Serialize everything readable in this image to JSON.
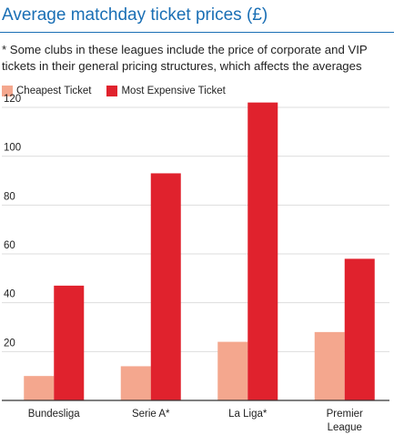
{
  "title": "Average matchday ticket prices (£)",
  "subtitle": "* Some clubs in these leagues include the price of corporate and VIP tickets in their general pricing structures, which affects the averages",
  "colors": {
    "cheapest": "#f4a78e",
    "most_expensive": "#e0222d",
    "title": "#1a6fb5",
    "grid": "#dddddd"
  },
  "chart_data": {
    "type": "bar",
    "categories": [
      "Bundesliga",
      "Serie A*",
      "La Liga*",
      "Premier League"
    ],
    "category_lines": [
      [
        "Bundesliga"
      ],
      [
        "Serie A*"
      ],
      [
        "La Liga*"
      ],
      [
        "Premier",
        "League"
      ]
    ],
    "series": [
      {
        "name": "Cheapest Ticket",
        "values": [
          10,
          14,
          24,
          28
        ]
      },
      {
        "name": "Most Expensive Ticket",
        "values": [
          47,
          93,
          122,
          58
        ]
      }
    ],
    "yticks": [
      "20",
      "40",
      "60",
      "80",
      "100",
      "120"
    ],
    "ylim": [
      0,
      120
    ],
    "grid": true,
    "legend_position": "top-left"
  }
}
